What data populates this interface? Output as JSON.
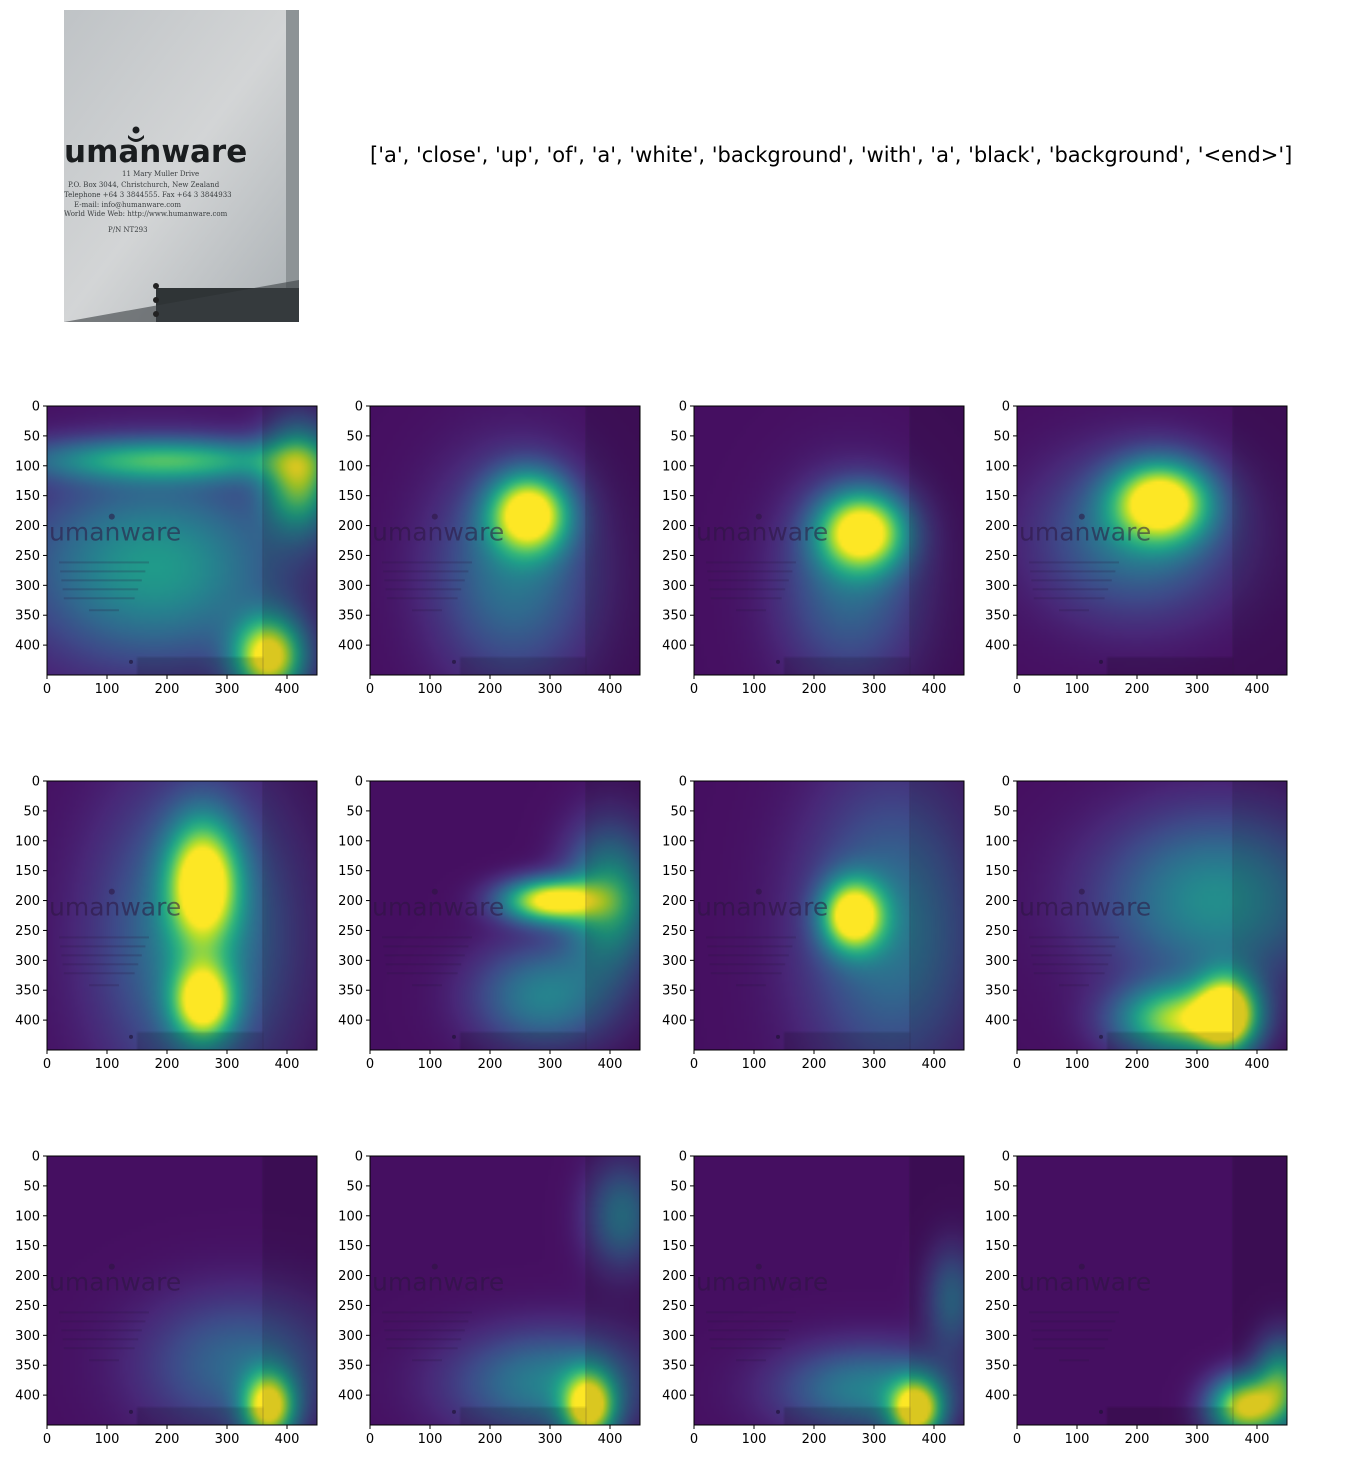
{
  "caption": "['a', 'close', 'up', 'of', 'a', 'white', 'background', 'with', 'a', 'black', 'background', '<end>']",
  "original_image": {
    "logo_text": "umanware",
    "document_text": [
      "11 Mary Muller Drive",
      "P.O. Box 3044, Christchurch, New Zealand",
      "Telephone +64 3 3844555. Fax +64 3 3844933",
      "E-mail: info@humanware.com",
      "World Wide Web: http://www.humanware.com",
      "P/N NT293"
    ]
  },
  "chart_data": {
    "type": "heatmap",
    "grid": {
      "rows": 3,
      "cols": 4
    },
    "colormap": "viridis",
    "xlim": [
      0,
      450
    ],
    "ylim": [
      450,
      0
    ],
    "xticks": [
      0,
      100,
      200,
      300,
      400
    ],
    "yticks": [
      0,
      50,
      100,
      150,
      200,
      250,
      300,
      350,
      400
    ],
    "background_logo_text": "umanware",
    "panels": [
      {
        "word": "a",
        "blobs": [
          {
            "x": 370,
            "y": 420,
            "sx": 40,
            "sy": 45,
            "v": 1.0
          },
          {
            "x": 200,
            "y": 90,
            "sx": 160,
            "sy": 25,
            "v": 0.55
          },
          {
            "x": 420,
            "y": 120,
            "sx": 40,
            "sy": 60,
            "v": 0.75
          },
          {
            "x": 180,
            "y": 270,
            "sx": 150,
            "sy": 110,
            "v": 0.5
          }
        ]
      },
      {
        "word": "close",
        "blobs": [
          {
            "x": 265,
            "y": 180,
            "sx": 45,
            "sy": 45,
            "v": 1.0
          },
          {
            "x": 240,
            "y": 280,
            "sx": 90,
            "sy": 120,
            "v": 0.35
          }
        ]
      },
      {
        "word": "up",
        "blobs": [
          {
            "x": 280,
            "y": 210,
            "sx": 50,
            "sy": 45,
            "v": 1.0
          },
          {
            "x": 260,
            "y": 300,
            "sx": 80,
            "sy": 110,
            "v": 0.3
          }
        ]
      },
      {
        "word": "of",
        "blobs": [
          {
            "x": 240,
            "y": 160,
            "sx": 55,
            "sy": 45,
            "v": 1.0
          },
          {
            "x": 200,
            "y": 220,
            "sx": 110,
            "sy": 90,
            "v": 0.35
          }
        ]
      },
      {
        "word": "a",
        "blobs": [
          {
            "x": 260,
            "y": 170,
            "sx": 40,
            "sy": 70,
            "v": 0.95
          },
          {
            "x": 260,
            "y": 370,
            "sx": 35,
            "sy": 45,
            "v": 0.9
          },
          {
            "x": 250,
            "y": 260,
            "sx": 110,
            "sy": 170,
            "v": 0.4
          }
        ]
      },
      {
        "word": "white",
        "blobs": [
          {
            "x": 300,
            "y": 200,
            "sx": 55,
            "sy": 25,
            "v": 1.0
          },
          {
            "x": 400,
            "y": 200,
            "sx": 50,
            "sy": 80,
            "v": 0.6
          },
          {
            "x": 290,
            "y": 360,
            "sx": 80,
            "sy": 60,
            "v": 0.4
          }
        ]
      },
      {
        "word": "background",
        "blobs": [
          {
            "x": 265,
            "y": 225,
            "sx": 35,
            "sy": 40,
            "v": 1.0
          },
          {
            "x": 330,
            "y": 250,
            "sx": 100,
            "sy": 170,
            "v": 0.35
          }
        ]
      },
      {
        "word": "with",
        "blobs": [
          {
            "x": 350,
            "y": 390,
            "sx": 35,
            "sy": 45,
            "v": 1.0
          },
          {
            "x": 270,
            "y": 400,
            "sx": 70,
            "sy": 40,
            "v": 0.8
          },
          {
            "x": 330,
            "y": 200,
            "sx": 130,
            "sy": 100,
            "v": 0.45
          }
        ]
      },
      {
        "word": "a",
        "blobs": [
          {
            "x": 370,
            "y": 420,
            "sx": 30,
            "sy": 40,
            "v": 0.95
          },
          {
            "x": 320,
            "y": 350,
            "sx": 110,
            "sy": 80,
            "v": 0.3
          }
        ]
      },
      {
        "word": "black",
        "blobs": [
          {
            "x": 365,
            "y": 420,
            "sx": 30,
            "sy": 40,
            "v": 0.95
          },
          {
            "x": 300,
            "y": 380,
            "sx": 110,
            "sy": 60,
            "v": 0.4
          },
          {
            "x": 420,
            "y": 100,
            "sx": 40,
            "sy": 60,
            "v": 0.35
          }
        ]
      },
      {
        "word": "background",
        "blobs": [
          {
            "x": 370,
            "y": 425,
            "sx": 30,
            "sy": 35,
            "v": 1.0
          },
          {
            "x": 290,
            "y": 390,
            "sx": 100,
            "sy": 50,
            "v": 0.4
          },
          {
            "x": 430,
            "y": 240,
            "sx": 30,
            "sy": 60,
            "v": 0.3
          }
        ]
      },
      {
        "word": "<end>",
        "blobs": [
          {
            "x": 380,
            "y": 420,
            "sx": 40,
            "sy": 35,
            "v": 0.95
          },
          {
            "x": 440,
            "y": 380,
            "sx": 30,
            "sy": 50,
            "v": 0.6
          }
        ]
      }
    ]
  }
}
